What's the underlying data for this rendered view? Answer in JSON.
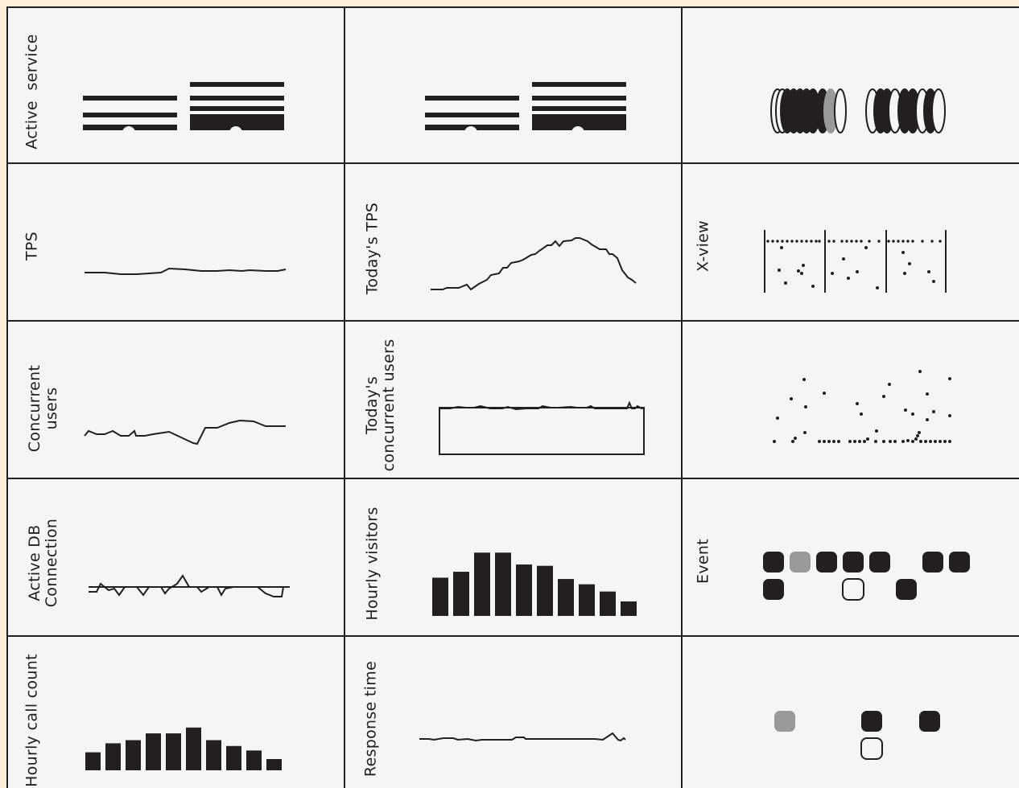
{
  "colors": {
    "page_border": "#fdefd9",
    "panel_bg": "#f5f5f5",
    "ink": "#221f20",
    "grey": "#999999"
  },
  "panels": {
    "active_service": {
      "label": "Active  service"
    },
    "tps": {
      "label": "TPS"
    },
    "concurrent_users": {
      "label": "Concurrent\nusers"
    },
    "active_db_connection": {
      "label": "Active DB\nConnection"
    },
    "hourly_call_count": {
      "label": "Hourly call count"
    },
    "todays_tps": {
      "label": "Today's TPS"
    },
    "todays_concurrent_users": {
      "label": "Today's\nconcurrent users"
    },
    "hourly_visitors": {
      "label": "Hourly visitors"
    },
    "response_time": {
      "label": "Response time"
    },
    "xview": {
      "label": "X-view"
    },
    "event": {
      "label": "Event"
    }
  },
  "hourly_visitors_bars": [
    0.58,
    0.67,
    0.96,
    0.96,
    0.78,
    0.76,
    0.56,
    0.48,
    0.37,
    0.22
  ],
  "hourly_call_count_bars": [
    0.4,
    0.6,
    0.67,
    0.82,
    0.82,
    0.95,
    0.67,
    0.54,
    0.44,
    0.25
  ],
  "event_row1": [
    "dark",
    "grey",
    "dark",
    "dark",
    "dark",
    "gap",
    "dark",
    "dark"
  ],
  "event_row2": [
    "dark",
    "gap",
    "gap",
    "outline",
    "gap",
    "dark"
  ],
  "event_bottom_row1": [
    "grey",
    "gap",
    "gap",
    "dark",
    "gap",
    "dark"
  ],
  "event_bottom_row2": [
    "gap",
    "gap",
    "gap",
    "outline"
  ]
}
